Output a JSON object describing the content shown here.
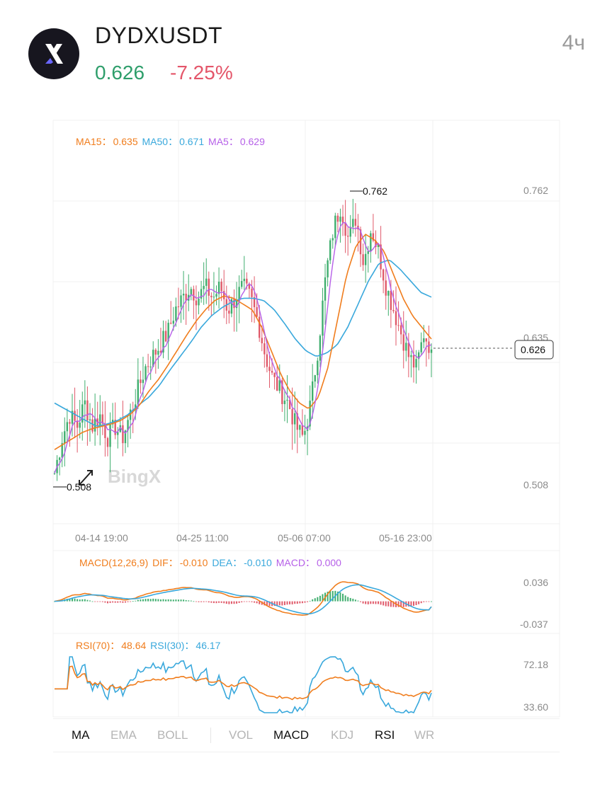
{
  "header": {
    "symbol": "DYDXUSDT",
    "price": "0.626",
    "change": "-7.25%",
    "interval": "4ч",
    "logo_icon": "dydx-logo-icon"
  },
  "chart": {
    "watermark": "BingX",
    "price_labels": {
      "high": "0.762",
      "ma15": "0.635",
      "current": "0.626",
      "low": "0.508"
    },
    "extremes": {
      "high": "0.762",
      "low": "0.508"
    },
    "x_labels": [
      "04-14 19:00",
      "04-25 11:00",
      "05-06 07:00",
      "05-16 23:00"
    ],
    "colors": {
      "up": "#3fae6e",
      "down": "#e05a6a",
      "ma15": "#f07d1d",
      "ma50": "#39a8dc",
      "ma5": "#b660e8"
    }
  },
  "legends": {
    "ma": {
      "ma15_label": "MA15：",
      "ma15_value": "0.635",
      "ma50_label": "MA50：",
      "ma50_value": "0.671",
      "ma5_label": "MA5：",
      "ma5_value": "0.629"
    },
    "macd": {
      "name": "MACD(12,26,9)",
      "dif_label": "DIF：",
      "dif_value": "-0.010",
      "dea_label": "DEA：",
      "dea_value": "-0.010",
      "macd_label": "MACD：",
      "macd_value": "0.000"
    },
    "rsi": {
      "rsi70_label": "RSI(70)：",
      "rsi70_value": "48.64",
      "rsi30_label": "RSI(30)：",
      "rsi30_value": "46.17"
    }
  },
  "macd_axis": {
    "top": "0.036",
    "bottom": "-0.037"
  },
  "rsi_axis": {
    "top": "72.18",
    "bottom": "33.60"
  },
  "tabs": {
    "ma": "MA",
    "ema": "EMA",
    "boll": "BOLL",
    "vol": "VOL",
    "macd": "MACD",
    "kdj": "KDJ",
    "rsi": "RSI",
    "wr": "WR"
  },
  "chart_data": {
    "type": "candlestick",
    "price_range": [
      0.508,
      0.762
    ],
    "current_price": 0.626,
    "close_series": [
      0.52,
      0.55,
      0.57,
      0.56,
      0.58,
      0.56,
      0.57,
      0.55,
      0.56,
      0.55,
      0.57,
      0.59,
      0.61,
      0.62,
      0.63,
      0.64,
      0.66,
      0.67,
      0.68,
      0.67,
      0.68,
      0.67,
      0.68,
      0.66,
      0.67,
      0.68,
      0.67,
      0.65,
      0.62,
      0.6,
      0.59,
      0.58,
      0.56,
      0.55,
      0.58,
      0.63,
      0.69,
      0.73,
      0.75,
      0.72,
      0.74,
      0.7,
      0.73,
      0.71,
      0.68,
      0.66,
      0.64,
      0.62,
      0.61,
      0.64,
      0.626
    ],
    "ma15_series": [
      0.54,
      0.545,
      0.55,
      0.555,
      0.558,
      0.56,
      0.562,
      0.565,
      0.57,
      0.578,
      0.59,
      0.6,
      0.612,
      0.625,
      0.638,
      0.65,
      0.66,
      0.668,
      0.672,
      0.67,
      0.665,
      0.66,
      0.645,
      0.625,
      0.605,
      0.59,
      0.58,
      0.575,
      0.585,
      0.61,
      0.65,
      0.69,
      0.715,
      0.725,
      0.72,
      0.71,
      0.69,
      0.67,
      0.655,
      0.645,
      0.635
    ],
    "ma50_series": [
      0.58,
      0.575,
      0.57,
      0.565,
      0.56,
      0.562,
      0.565,
      0.57,
      0.578,
      0.585,
      0.595,
      0.608,
      0.62,
      0.632,
      0.645,
      0.655,
      0.662,
      0.667,
      0.67,
      0.67,
      0.668,
      0.66,
      0.648,
      0.635,
      0.625,
      0.62,
      0.623,
      0.63,
      0.645,
      0.665,
      0.685,
      0.7,
      0.703,
      0.695,
      0.685,
      0.675,
      0.671
    ],
    "macd": {
      "dif_last": -0.01,
      "dea_last": -0.01,
      "hist_last": 0.0,
      "range": [
        -0.037,
        0.036
      ]
    },
    "rsi": {
      "rsi70_last": 48.64,
      "rsi30_last": 46.17,
      "range": [
        33.6,
        72.18
      ]
    }
  }
}
